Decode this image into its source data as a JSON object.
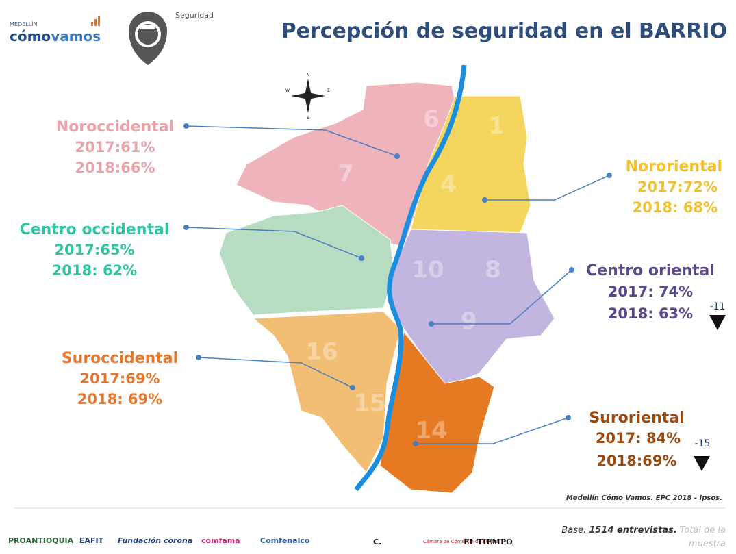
{
  "header": {
    "city": "MEDELLÍN",
    "brand_a": "cómo",
    "brand_b": "vamos",
    "section": "Seguridad",
    "title": "Percepción de seguridad en el BARRIO"
  },
  "compass": {
    "n": "N",
    "s": "S",
    "e": "E",
    "w": "W"
  },
  "regions": [
    {
      "name": "Noroccidental",
      "line1": "2017:61%",
      "line2": "2018:66%"
    },
    {
      "name": "Nororiental",
      "line1": "2017:72%",
      "line2": "2018: 68%"
    },
    {
      "name": "Centro occidental",
      "line1": "2017:65%",
      "line2": "2018: 62%"
    },
    {
      "name": "Centro oriental",
      "line1": "2017: 74%",
      "line2": "2018: 63%",
      "change": "-11"
    },
    {
      "name": "Suroccidental",
      "line1": "2017:69%",
      "line2": "2018: 69%"
    },
    {
      "name": "Suroriental",
      "line1": "2017: 84%",
      "line2": "2018:69%",
      "change": "-15"
    }
  ],
  "map_labels": [
    "6",
    "1",
    "7",
    "4",
    "10",
    "8",
    "9",
    "16",
    "15",
    "14"
  ],
  "source": "Medellín Cómo Vamos. EPC 2018 - Ipsos.",
  "footer": {
    "base": "Base.",
    "count": "1514 entrevistas.",
    "total": "Total de la",
    "total2": "muestra"
  },
  "sponsors": [
    "PROANTIOQUIA",
    "EAFIT",
    "Fundación corona",
    "comfama",
    "Comfenalco",
    "C.",
    "Cámara de Comercio de Bogotá",
    "EL TIEMPO"
  ]
}
